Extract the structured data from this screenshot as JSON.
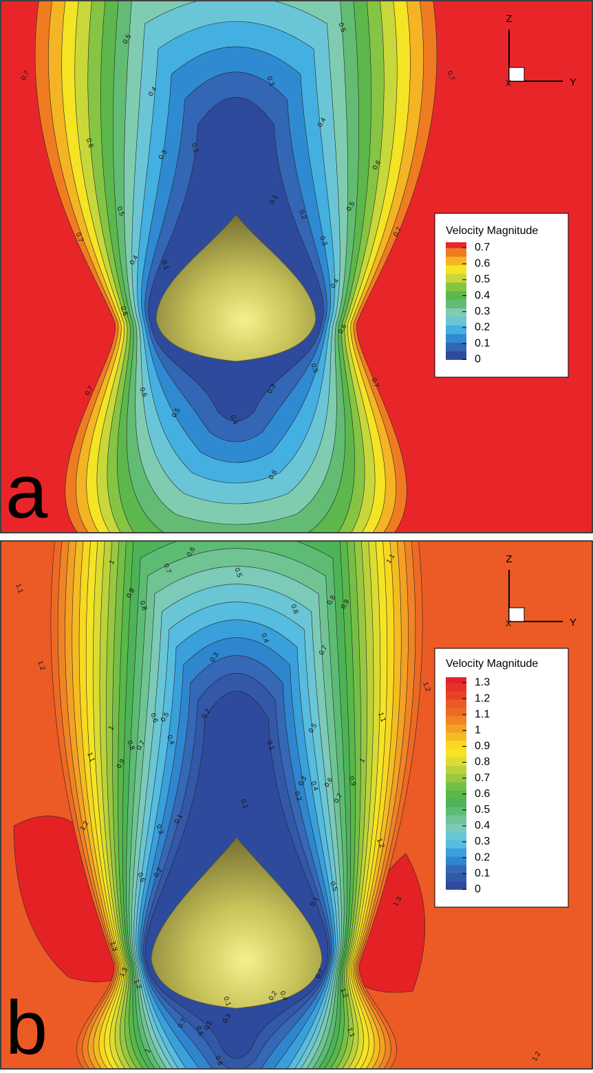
{
  "chart_data": [
    {
      "type": "contour",
      "panel_label": "a",
      "axes_triad": {
        "z": "Z",
        "y": "Y",
        "x": "X"
      },
      "legend_title": "Velocity Magnitude",
      "levels": [
        0.7,
        0.6,
        0.5,
        0.4,
        0.3,
        0.2,
        0.1,
        0
      ],
      "colors": [
        "#2e4a9c",
        "#3366b4",
        "#2f8ad2",
        "#44b0e2",
        "#6ac6d6",
        "#80ccb0",
        "#62bc74",
        "#5cb84c",
        "#86c444",
        "#c8d83a",
        "#f4e424",
        "#f4b424",
        "#f07c22",
        "#e8262a"
      ],
      "contour_labels": [
        0.5,
        0.5,
        0.7,
        0.7,
        0.4,
        0.3,
        0.4,
        0.6,
        0.3,
        0.2,
        0.6,
        0.5,
        0.1,
        0.2,
        0.5,
        0.7,
        0.7,
        0.3,
        0.4,
        0.1,
        0.4,
        0.6,
        0.6,
        0.5,
        0.7,
        0.7,
        0.3,
        0.6,
        0.5,
        0.4,
        0.6
      ]
    },
    {
      "type": "contour",
      "panel_label": "b",
      "axes_triad": {
        "z": "Z",
        "y": "Y",
        "x": "X"
      },
      "legend_title": "Velocity Magnitude",
      "levels": [
        1.3,
        1.2,
        1.1,
        1,
        0.9,
        0.8,
        0.7,
        0.6,
        0.5,
        0.4,
        0.3,
        0.2,
        0.1,
        0
      ],
      "colors": [
        "#2e4a9c",
        "#3358a8",
        "#3568b6",
        "#2f86cf",
        "#3aa0dc",
        "#56bce0",
        "#6ac6d4",
        "#7ccab8",
        "#70c494",
        "#5cbc74",
        "#4cb456",
        "#58b84a",
        "#74c046",
        "#98c840",
        "#bcd23a",
        "#dcdc32",
        "#f4e424",
        "#f8d820",
        "#f4bc22",
        "#f4a024",
        "#f08424",
        "#ee6a24",
        "#ec5a26",
        "#ea4024",
        "#e8302a",
        "#e42226"
      ],
      "contour_labels": [
        1,
        0.7,
        0.6,
        0.5,
        1.1,
        1.1,
        0.9,
        0.8,
        0.8,
        0.6,
        0.9,
        0.4,
        0.7,
        1.2,
        0.3,
        1.2,
        0.2,
        0.6,
        0.5,
        0.4,
        0.7,
        0.8,
        0.5,
        1.1,
        1,
        1.1,
        0.9,
        0.1,
        0.3,
        0.4,
        0.6,
        0.9,
        1,
        0.2,
        0.7,
        0.1,
        1.2,
        0.3,
        0.1,
        1.2,
        0.2,
        0.5,
        0.1,
        0.5,
        1.3,
        1.3,
        1.3,
        1.2,
        0.7,
        0.4,
        0.2,
        0.1,
        0.3,
        1.2,
        0.7,
        0.6,
        0.5,
        1.1,
        1,
        0.8,
        1.2
      ]
    }
  ]
}
